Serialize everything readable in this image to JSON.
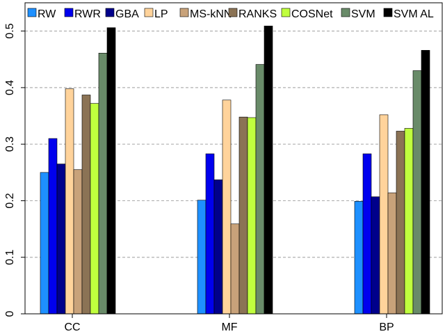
{
  "chart_data": {
    "type": "bar",
    "categories": [
      "CC",
      "MF",
      "BP"
    ],
    "ylim": [
      0,
      0.55
    ],
    "yticks": [
      0,
      0.1,
      0.2,
      0.3,
      0.4,
      0.5
    ],
    "ytick_labels": [
      "0",
      "0.1",
      "0.2",
      "0.3",
      "0.4",
      "0.5"
    ],
    "grid": "horizontal dashed",
    "legend_placement": "top",
    "series": [
      {
        "name": "RW",
        "color": "#1e90ff",
        "values": [
          0.25,
          0.201,
          0.199
        ]
      },
      {
        "name": "RWR",
        "color": "#0000ee",
        "values": [
          0.31,
          0.283,
          0.283
        ]
      },
      {
        "name": "GBA",
        "color": "#00008b",
        "values": [
          0.265,
          0.237,
          0.207
        ]
      },
      {
        "name": "LP",
        "color": "#ffd39b",
        "values": [
          0.398,
          0.378,
          0.352
        ]
      },
      {
        "name": "MS-kNN",
        "color": "#c8a27a",
        "values": [
          0.255,
          0.159,
          0.214
        ]
      },
      {
        "name": "RANKS",
        "color": "#8b7355",
        "values": [
          0.387,
          0.348,
          0.323
        ]
      },
      {
        "name": "COSNet",
        "color": "#c0ff3e",
        "values": [
          0.372,
          0.347,
          0.328
        ]
      },
      {
        "name": "SVM",
        "color": "#698b69",
        "values": [
          0.461,
          0.441,
          0.43
        ]
      },
      {
        "name": "SVM AL",
        "color": "#000000",
        "values": [
          0.506,
          0.509,
          0.466
        ]
      }
    ]
  }
}
